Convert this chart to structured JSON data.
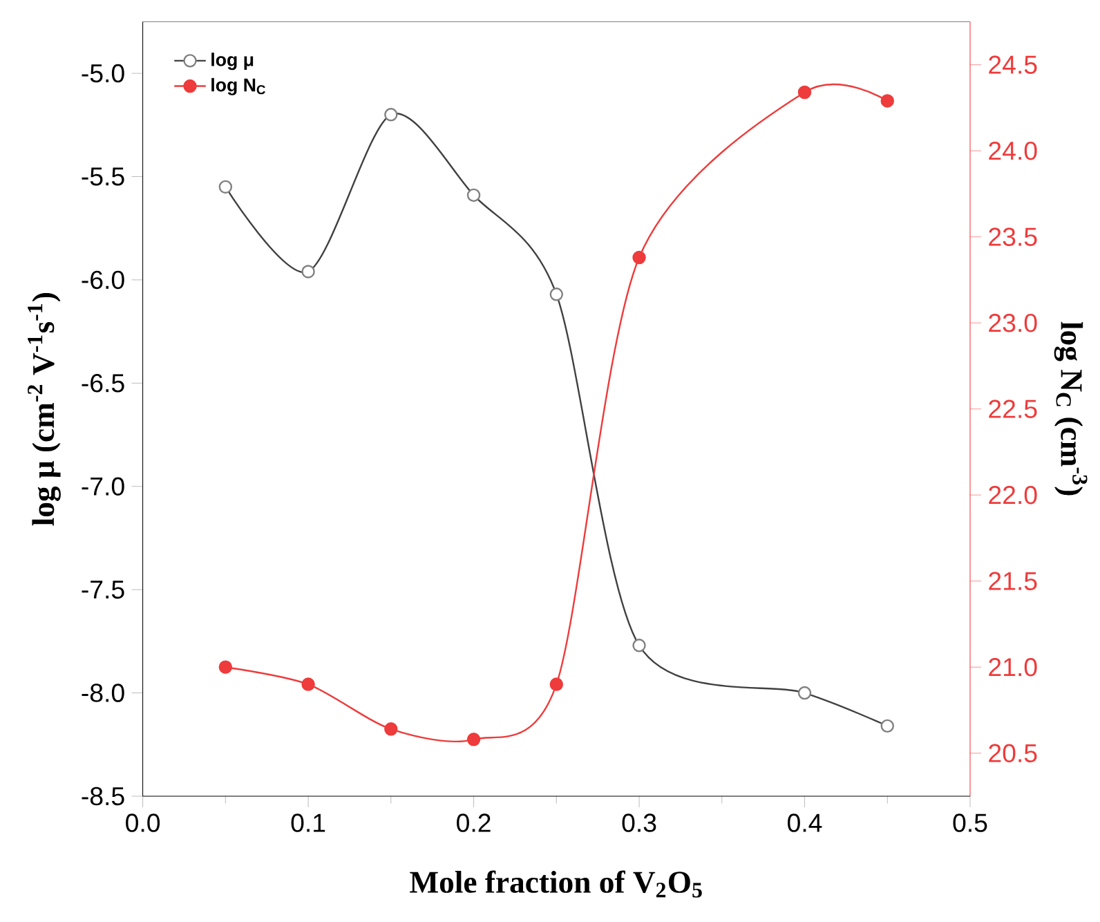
{
  "chart_data": {
    "type": "line",
    "xlabel": "Mole fraction of V$_{2}$O$_{5}$",
    "ylabel": "log μ  (cm$^{-2}$ V$^{-1}$s$^{-1}$)",
    "y2label": "log N$_{C}$  (cm$^{-3}$)",
    "x": [
      0.05,
      0.1,
      0.15,
      0.2,
      0.25,
      0.3,
      0.4,
      0.45
    ],
    "series": [
      {
        "name": "log μ",
        "color": "#404040",
        "values": [
          -5.55,
          -5.96,
          -5.2,
          -5.59,
          -6.07,
          -7.77,
          -8.0,
          -8.16
        ]
      },
      {
        "name": "log N$_{C}$",
        "color": "#ee3b3b",
        "axis": "y2",
        "values": [
          21.0,
          20.9,
          20.64,
          20.58,
          20.9,
          23.38,
          24.34,
          24.29
        ]
      }
    ],
    "xlim": [
      0,
      0.5
    ],
    "xticks": [
      {
        "value": 0,
        "label": "0.0"
      },
      {
        "value": 0.1,
        "label": "0.1"
      },
      {
        "value": 0.2,
        "label": "0.2"
      },
      {
        "value": 0.3,
        "label": "0.3"
      },
      {
        "value": 0.4,
        "label": "0.4"
      },
      {
        "value": 0.5,
        "label": "0.5"
      }
    ],
    "ylim": [
      -8.5,
      -4.75
    ],
    "yticks": [
      {
        "value": -8.5,
        "label": "-8.5"
      },
      {
        "value": -8.0,
        "label": "-8.0"
      },
      {
        "value": -7.5,
        "label": "-7.5"
      },
      {
        "value": -7.0,
        "label": "-7.0"
      },
      {
        "value": -6.5,
        "label": "-6.5"
      },
      {
        "value": -6.0,
        "label": "-6.0"
      },
      {
        "value": -5.5,
        "label": "-5.5"
      },
      {
        "value": -5.0,
        "label": "-5.0"
      }
    ],
    "y2lim": [
      20.25,
      24.75
    ],
    "y2ticks": [
      {
        "value": 20.5,
        "label": "20.5"
      },
      {
        "value": 21.0,
        "label": "21.0"
      },
      {
        "value": 21.5,
        "label": "21.5"
      },
      {
        "value": 22.0,
        "label": "22.0"
      },
      {
        "value": 22.5,
        "label": "22.5"
      },
      {
        "value": 23.0,
        "label": "23.0"
      },
      {
        "value": 23.5,
        "label": "23.5"
      },
      {
        "value": 24.0,
        "label": "24.0"
      },
      {
        "value": 24.5,
        "label": "24.5"
      }
    ],
    "marker": "circle",
    "line_style": "solid",
    "legend": "top left",
    "grid": false
  }
}
